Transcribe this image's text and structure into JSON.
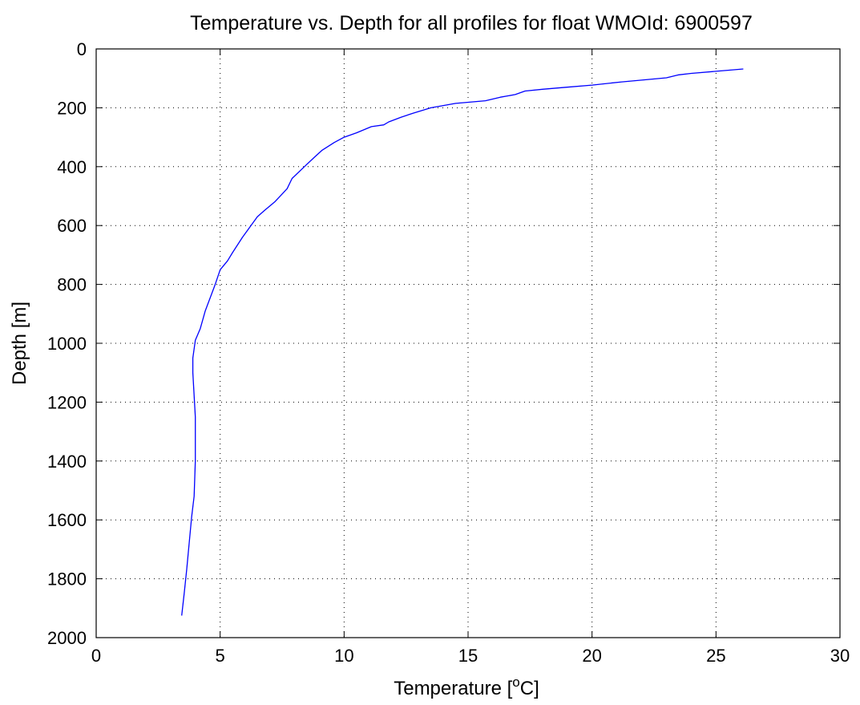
{
  "chart_data": {
    "type": "line",
    "title": "Temperature vs. Depth for all profiles for float WMOId: 6900597",
    "xlabel": {
      "prefix": "Temperature [",
      "sup": "o",
      "suffix": "C]"
    },
    "ylabel": "Depth [m]",
    "xlim": [
      0,
      30
    ],
    "ylim": [
      0,
      2000
    ],
    "y_reversed": true,
    "grid": true,
    "x_ticks": [
      0,
      5,
      10,
      15,
      20,
      25,
      30
    ],
    "y_ticks": [
      0,
      200,
      400,
      600,
      800,
      1000,
      1200,
      1400,
      1600,
      1800,
      2000
    ],
    "series": [
      {
        "color": "#0000ff",
        "points": [
          [
            26.1,
            68
          ],
          [
            25.0,
            76
          ],
          [
            24.0,
            83
          ],
          [
            23.5,
            88
          ],
          [
            23.0,
            98
          ],
          [
            22.0,
            106
          ],
          [
            21.2,
            112
          ],
          [
            20.0,
            123
          ],
          [
            19.0,
            130
          ],
          [
            18.0,
            137
          ],
          [
            17.3,
            143
          ],
          [
            16.9,
            155
          ],
          [
            16.3,
            164
          ],
          [
            15.7,
            176
          ],
          [
            14.5,
            185
          ],
          [
            13.5,
            200
          ],
          [
            12.8,
            218
          ],
          [
            12.3,
            232
          ],
          [
            11.8,
            248
          ],
          [
            11.6,
            258
          ],
          [
            11.1,
            264
          ],
          [
            10.5,
            285
          ],
          [
            10.0,
            300
          ],
          [
            9.6,
            318
          ],
          [
            9.1,
            345
          ],
          [
            8.8,
            368
          ],
          [
            8.4,
            400
          ],
          [
            7.9,
            440
          ],
          [
            7.7,
            475
          ],
          [
            7.2,
            520
          ],
          [
            6.8,
            548
          ],
          [
            6.5,
            570
          ],
          [
            5.9,
            640
          ],
          [
            5.5,
            692
          ],
          [
            5.3,
            720
          ],
          [
            5.0,
            750
          ],
          [
            4.8,
            800
          ],
          [
            4.4,
            890
          ],
          [
            4.2,
            950
          ],
          [
            4.0,
            990
          ],
          [
            3.9,
            1050
          ],
          [
            3.9,
            1100
          ],
          [
            4.0,
            1250
          ],
          [
            4.0,
            1400
          ],
          [
            3.95,
            1520
          ],
          [
            3.85,
            1590
          ],
          [
            3.75,
            1680
          ],
          [
            3.65,
            1770
          ],
          [
            3.55,
            1850
          ],
          [
            3.45,
            1925
          ]
        ]
      }
    ]
  }
}
